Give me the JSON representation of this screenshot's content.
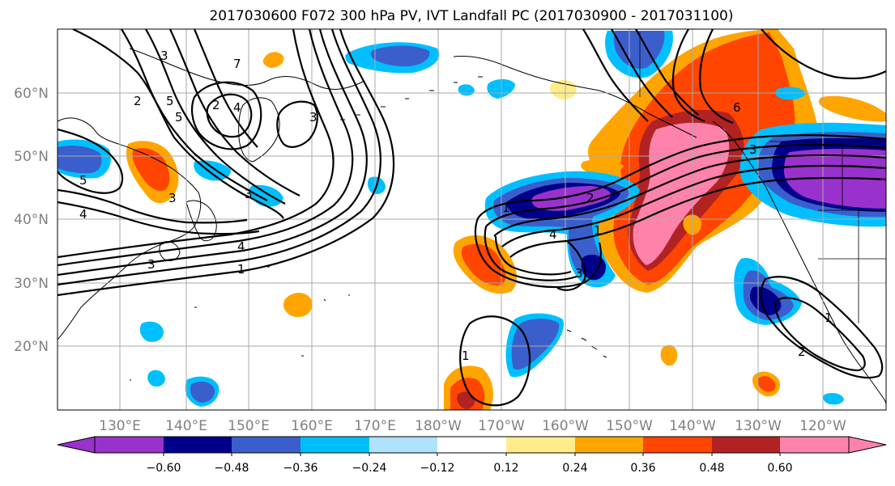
{
  "title": "2017030600 F072 300 hPa PV, IVT Landfall PC (2017030900 - 2017031100)",
  "map": {
    "lat_labels": [
      "60°N",
      "50°N",
      "40°N",
      "30°N",
      "20°N"
    ],
    "lon_labels": [
      "130°E",
      "140°E",
      "150°E",
      "160°E",
      "170°E",
      "180°W",
      "170°W",
      "160°W",
      "150°W",
      "140°W",
      "130°W",
      "120°W"
    ]
  },
  "colorbar": {
    "colors": [
      "#9932cc",
      "#00008b",
      "#3a5fcd",
      "#00bfff",
      "#b0e2ff",
      "#ffffff",
      "#ffec8b",
      "#ffa500",
      "#ff4500",
      "#b22222",
      "#ff82ab"
    ],
    "tick_labels": [
      "−0.60",
      "−0.48",
      "−0.36",
      "−0.24",
      "−0.12",
      "0.12",
      "0.24",
      "0.36",
      "0.48",
      "0.60"
    ]
  },
  "contour_labels": {
    "nw_3": "3",
    "nw_2": "2",
    "nw_5a": "5",
    "nw_5b": "5",
    "nw_2b": "2",
    "nw_4": "4",
    "nw_7": "7",
    "nw_3b": "3",
    "w_5": "5",
    "w_4": "4",
    "w_3": "3",
    "w_3b": "3",
    "c_4": "4",
    "c_1": "1",
    "c_3": "3",
    "e_1": "1",
    "e_2": "2",
    "e_4": "4",
    "e_3": "3",
    "e_1b": "1",
    "s_1": "1",
    "se_1": "1",
    "se_2": "2",
    "ne_3": "3",
    "ne_6": "6"
  }
}
